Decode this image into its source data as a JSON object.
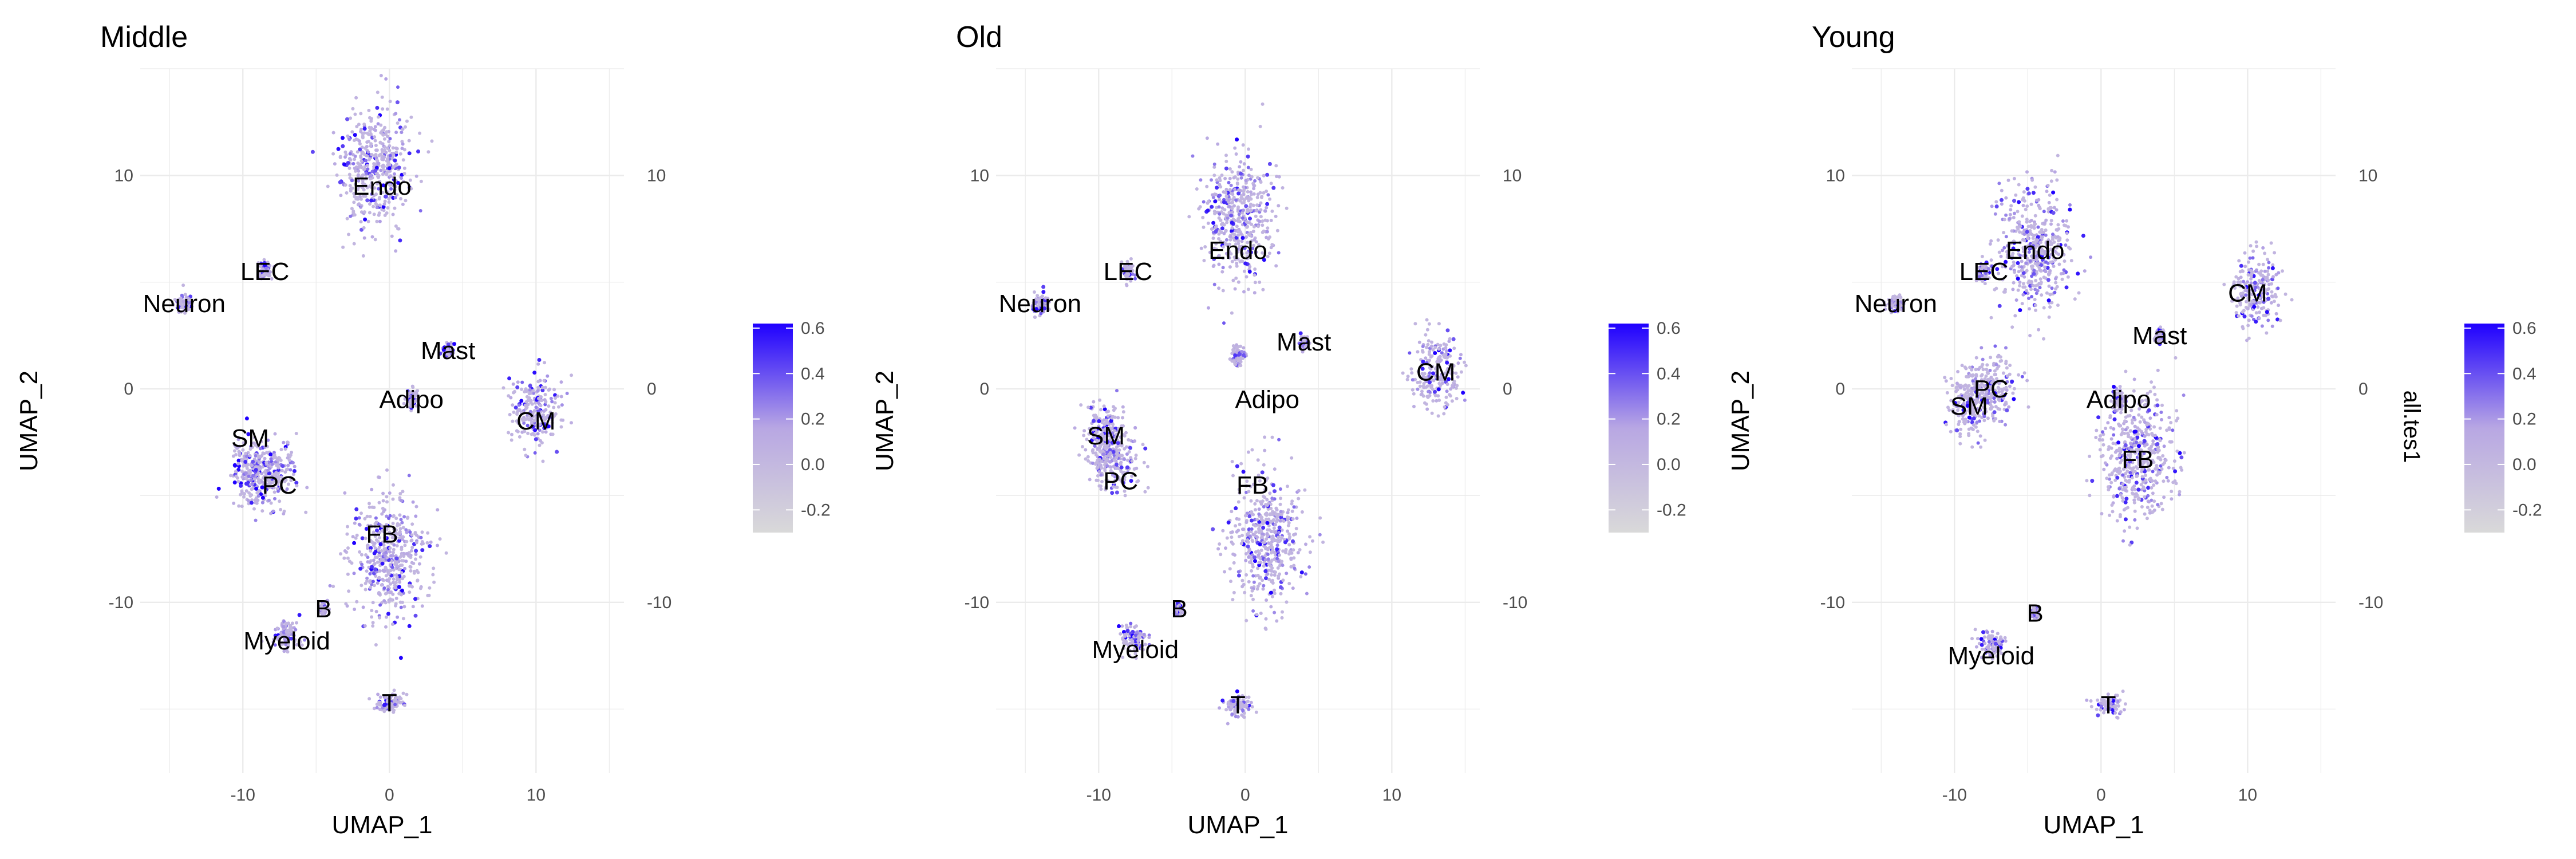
{
  "chart_data": [
    {
      "type": "scatter",
      "title": "Middle",
      "xlabel": "UMAP_1",
      "ylabel": "UMAP_2",
      "xlim": [
        -17,
        16
      ],
      "ylim": [
        -18,
        15
      ],
      "x_ticks": [
        -10,
        0,
        10
      ],
      "y_ticks": [
        -10,
        0,
        10
      ],
      "grid": true,
      "clusters": [
        {
          "label": "Endo",
          "x": -0.5,
          "y": 9.5,
          "label_x": -0.5,
          "label_y": 9.5
        },
        {
          "label": "LEC",
          "x": -8.5,
          "y": 5.5,
          "label_x": -8.5,
          "label_y": 5.5
        },
        {
          "label": "Neuron",
          "x": -14,
          "y": 4,
          "label_x": -14,
          "label_y": 4
        },
        {
          "label": "Mast",
          "x": 4,
          "y": 1.8,
          "label_x": 4,
          "label_y": 1.8
        },
        {
          "label": "Adipo",
          "x": 1.5,
          "y": -0.5,
          "label_x": 1.5,
          "label_y": -0.5
        },
        {
          "label": "CM",
          "x": 10,
          "y": -1.5,
          "label_x": 10,
          "label_y": -1.5
        },
        {
          "label": "SM",
          "x": -9.5,
          "y": -2.3,
          "label_x": -9.5,
          "label_y": -2.3
        },
        {
          "label": "PC",
          "x": -7.5,
          "y": -4.5,
          "label_x": -7.5,
          "label_y": -4.5
        },
        {
          "label": "FB",
          "x": -0.5,
          "y": -6.8,
          "label_x": -0.5,
          "label_y": -6.8
        },
        {
          "label": "B",
          "x": -4.5,
          "y": -10.3,
          "label_x": -4.5,
          "label_y": -10.3
        },
        {
          "label": "Myeloid",
          "x": -7,
          "y": -11.8,
          "label_x": -7,
          "label_y": -11.8
        },
        {
          "label": "T",
          "x": 0,
          "y": -14.7,
          "label_x": 0,
          "label_y": -14.7
        }
      ]
    },
    {
      "type": "scatter",
      "title": "Old",
      "xlabel": "UMAP_1",
      "ylabel": "UMAP_2",
      "xlim": [
        -17,
        16
      ],
      "ylim": [
        -18,
        15
      ],
      "x_ticks": [
        -10,
        0,
        10
      ],
      "y_ticks": [
        -10,
        0,
        10
      ],
      "grid": true,
      "clusters": [
        {
          "label": "Endo",
          "x": -0.5,
          "y": 6.5,
          "label_x": -0.5,
          "label_y": 6.5
        },
        {
          "label": "LEC",
          "x": -8,
          "y": 5.5,
          "label_x": -8,
          "label_y": 5.5
        },
        {
          "label": "Neuron",
          "x": -14,
          "y": 4,
          "label_x": -14,
          "label_y": 4
        },
        {
          "label": "Mast",
          "x": 4,
          "y": 2.2,
          "label_x": 4,
          "label_y": 2.2
        },
        {
          "label": "Adipo",
          "x": 1.5,
          "y": -0.5,
          "label_x": 1.5,
          "label_y": -0.5
        },
        {
          "label": "CM",
          "x": 13,
          "y": 0.8,
          "label_x": 13,
          "label_y": 0.8
        },
        {
          "label": "SM",
          "x": -9.5,
          "y": -2.2,
          "label_x": -9.5,
          "label_y": -2.2
        },
        {
          "label": "PC",
          "x": -8.5,
          "y": -4.3,
          "label_x": -8.5,
          "label_y": -4.3
        },
        {
          "label": "FB",
          "x": 0.5,
          "y": -4.5,
          "label_x": 0.5,
          "label_y": -4.5
        },
        {
          "label": "B",
          "x": -4.5,
          "y": -10.3,
          "label_x": -4.5,
          "label_y": -10.3
        },
        {
          "label": "Myeloid",
          "x": -7.5,
          "y": -12.2,
          "label_x": -7.5,
          "label_y": -12.2
        },
        {
          "label": "T",
          "x": -0.5,
          "y": -14.8,
          "label_x": -0.5,
          "label_y": -14.8
        }
      ]
    },
    {
      "type": "scatter",
      "title": "Young",
      "xlabel": "UMAP_1",
      "ylabel": "UMAP_2",
      "xlim": [
        -17,
        16
      ],
      "ylim": [
        -18,
        15
      ],
      "x_ticks": [
        -10,
        0,
        10
      ],
      "y_ticks": [
        -10,
        0,
        10
      ],
      "grid": true,
      "clusters": [
        {
          "label": "Endo",
          "x": -4.5,
          "y": 6.5,
          "label_x": -4.5,
          "label_y": 6.5
        },
        {
          "label": "LEC",
          "x": -8,
          "y": 5.5,
          "label_x": -8,
          "label_y": 5.5
        },
        {
          "label": "Neuron",
          "x": -14,
          "y": 4,
          "label_x": -14,
          "label_y": 4
        },
        {
          "label": "Mast",
          "x": 4,
          "y": 2.5,
          "label_x": 4,
          "label_y": 2.5
        },
        {
          "label": "Adipo",
          "x": 1.2,
          "y": -0.5,
          "label_x": 1.2,
          "label_y": -0.5
        },
        {
          "label": "CM",
          "x": 10,
          "y": 4.5,
          "label_x": 10,
          "label_y": 4.5
        },
        {
          "label": "SM",
          "x": -9,
          "y": -0.8,
          "label_x": -9,
          "label_y": -0.8
        },
        {
          "label": "PC",
          "x": -7.5,
          "y": 0,
          "label_x": -7.5,
          "label_y": 0
        },
        {
          "label": "FB",
          "x": 2.5,
          "y": -3.3,
          "label_x": 2.5,
          "label_y": -3.3
        },
        {
          "label": "B",
          "x": -4.5,
          "y": -10.5,
          "label_x": -4.5,
          "label_y": -10.5
        },
        {
          "label": "Myeloid",
          "x": -7.5,
          "y": -12.5,
          "label_x": -7.5,
          "label_y": -12.5
        },
        {
          "label": "T",
          "x": 0.5,
          "y": -14.8,
          "label_x": 0.5,
          "label_y": -14.8
        }
      ]
    }
  ],
  "colorbar": {
    "title": "all.tes1",
    "ticks": [
      -0.2,
      0.0,
      0.2,
      0.4,
      0.6
    ],
    "tick_labels": [
      "-0.2",
      "0.0",
      "0.2",
      "0.4",
      "0.6"
    ],
    "min": -0.3,
    "max": 0.62,
    "low_color": "#d9d9d9",
    "mid_color": "#b8a7e3",
    "high_color": "#1f00ff"
  },
  "colors": {
    "point_low": "#c7b9ea",
    "point_high": "#1f00ff",
    "grid": "#ebebeb",
    "tick_text": "#4d4d4d"
  }
}
